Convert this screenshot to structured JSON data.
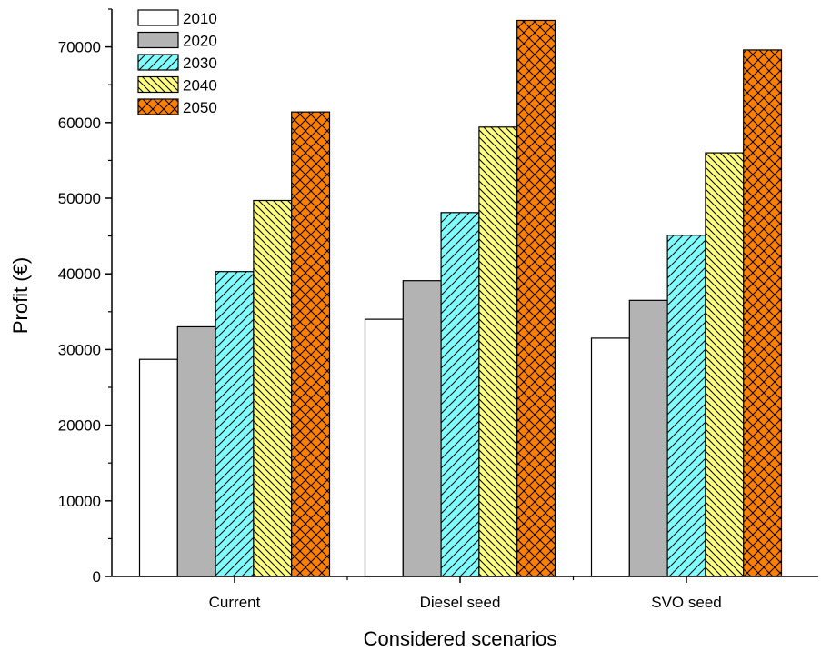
{
  "chart_data": {
    "type": "bar",
    "xlabel": "Considered scenarios",
    "ylabel": "Profit (€)",
    "categories": [
      "Current",
      "Diesel seed",
      "SVO seed"
    ],
    "ylim": [
      0,
      75000
    ],
    "yticks": [
      0,
      10000,
      20000,
      30000,
      40000,
      50000,
      60000,
      70000
    ],
    "grid": false,
    "legend_position": "top-left",
    "series": [
      {
        "name": "2010",
        "color": "#ffffff",
        "pattern": "none",
        "values": [
          28700,
          34000,
          31500
        ]
      },
      {
        "name": "2020",
        "color": "#b3b3b3",
        "pattern": "none",
        "values": [
          33000,
          39100,
          36500
        ]
      },
      {
        "name": "2030",
        "color": "#7fffff",
        "pattern": "diagonal-up",
        "values": [
          40300,
          48100,
          45100
        ]
      },
      {
        "name": "2040",
        "color": "#ffff80",
        "pattern": "diagonal-down",
        "values": [
          49700,
          59400,
          56000
        ]
      },
      {
        "name": "2050",
        "color": "#ff8000",
        "pattern": "crosshatch",
        "values": [
          61400,
          73500,
          69600
        ]
      }
    ]
  }
}
